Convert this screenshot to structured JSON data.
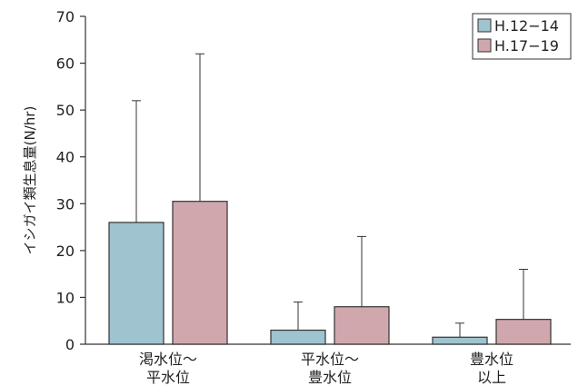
{
  "chart_data": {
    "type": "bar",
    "title": "",
    "xlabel": "",
    "ylabel": "イシガイ類生息量(N/hr)",
    "ylim": [
      0,
      70
    ],
    "yticks": [
      0,
      10,
      20,
      30,
      40,
      50,
      60,
      70
    ],
    "grid": false,
    "legend_position": "top-right",
    "categories": [
      [
        "渇水位〜",
        "平水位"
      ],
      [
        "平水位〜",
        "豊水位"
      ],
      [
        "豊水位",
        "以上"
      ]
    ],
    "series": [
      {
        "name": "H.12−14",
        "color": "#9fc3cf",
        "values": [
          26,
          3,
          1.5
        ],
        "error_upper": [
          52,
          9,
          4.5
        ]
      },
      {
        "name": "H.17−19",
        "color": "#d1a7ae",
        "values": [
          30.5,
          8,
          5.3
        ],
        "error_upper": [
          62,
          23,
          16
        ]
      }
    ]
  }
}
